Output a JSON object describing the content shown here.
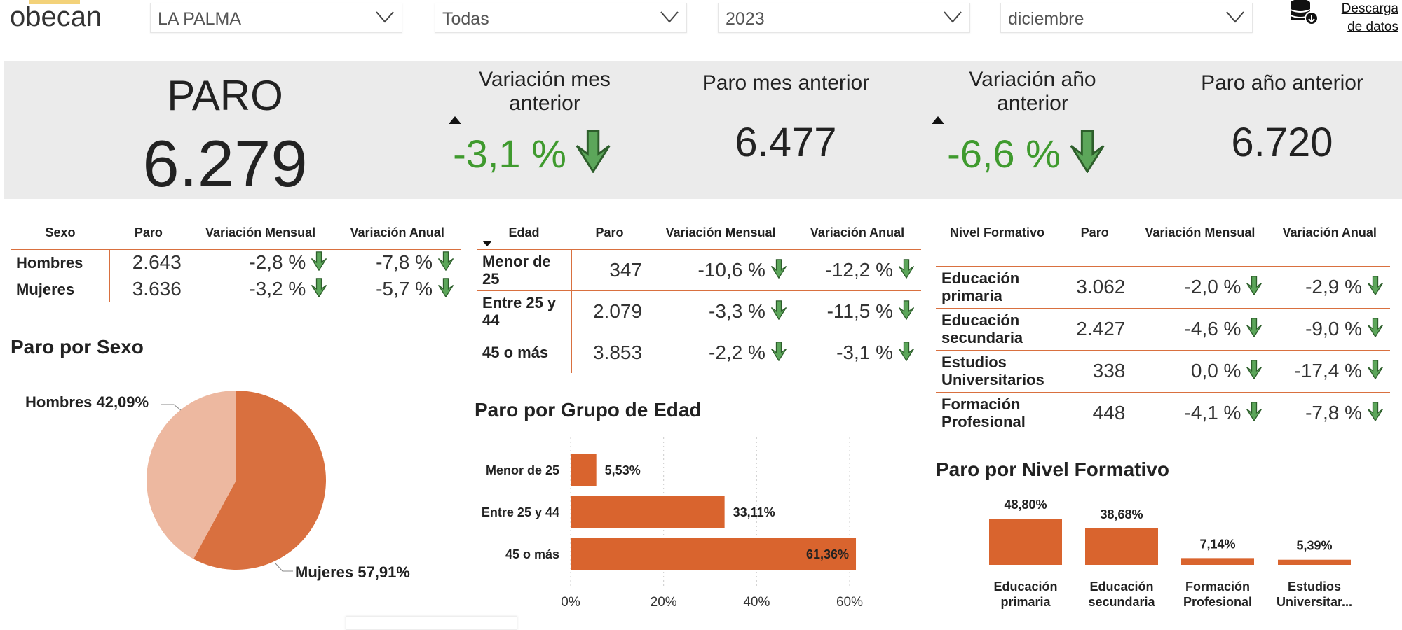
{
  "header": {
    "logo": "obecan",
    "filters": [
      {
        "value": "LA PALMA"
      },
      {
        "value": "Todas"
      },
      {
        "value": "2023"
      },
      {
        "value": "diciembre"
      }
    ],
    "download_label_1": "Descarga",
    "download_label_2": "de datos"
  },
  "kpis": {
    "paro_label": "PARO",
    "paro_value": "6.279",
    "var_mes_label_1": "Variación mes",
    "var_mes_label_2": "anterior",
    "var_mes_value": "-3,1 %",
    "paro_mes_label": "Paro mes anterior",
    "paro_mes_value": "6.477",
    "var_anio_label_1": "Variación año",
    "var_anio_label_2": "anterior",
    "var_anio_value": "-6,6 %",
    "paro_anio_label": "Paro año anterior",
    "paro_anio_value": "6.720"
  },
  "colors": {
    "accent": "#d9703f",
    "accent_light": "#edb8a0",
    "positive": "#3f9a2e",
    "kpi_bg": "#ebebeb"
  },
  "sexo_table": {
    "headers": [
      "Sexo",
      "Paro",
      "Variación Mensual",
      "Variación Anual"
    ],
    "rows": [
      [
        "Hombres",
        "2.643",
        "-2,8 %",
        "-7,8 %"
      ],
      [
        "Mujeres",
        "3.636",
        "-3,2 %",
        "-5,7 %"
      ]
    ]
  },
  "edad_table": {
    "headers": [
      "Edad",
      "Paro",
      "Variación Mensual",
      "Variación Anual"
    ],
    "rows": [
      [
        "Menor de 25",
        "347",
        "-10,6 %",
        "-12,2 %"
      ],
      [
        "Entre 25 y 44",
        "2.079",
        "-3,3 %",
        "-11,5 %"
      ],
      [
        "45 o más",
        "3.853",
        "-2,2 %",
        "-3,1 %"
      ]
    ]
  },
  "nivel_table": {
    "headers": [
      "Nivel Formativo",
      "Paro",
      "Variación Mensual",
      "Variación Anual"
    ],
    "rows": [
      [
        "Educación primaria",
        "3.062",
        "-2,0 %",
        "-2,9 %"
      ],
      [
        "Educación secundaria",
        "2.427",
        "-4,6 %",
        "-9,0 %"
      ],
      [
        "Estudios Universitarios",
        "338",
        "0,0 %",
        "-17,4 %"
      ],
      [
        "Formación Profesional",
        "448",
        "-4,1 %",
        "-7,8 %"
      ]
    ]
  },
  "chart_data": [
    {
      "type": "pie",
      "title": "Paro por Sexo",
      "categories": [
        "Hombres",
        "Mujeres"
      ],
      "values": [
        42.09,
        57.91
      ],
      "labels": [
        "Hombres 42,09%",
        "Mujeres 57,91%"
      ],
      "colors": [
        "#edb8a0",
        "#d9703f"
      ]
    },
    {
      "type": "bar",
      "orientation": "horizontal",
      "title": "Paro por Grupo de Edad",
      "categories": [
        "Menor de 25",
        "Entre 25 y 44",
        "45 o más"
      ],
      "values": [
        5.53,
        33.11,
        61.36
      ],
      "labels": [
        "5,53%",
        "33,11%",
        "61,36%"
      ],
      "xlim": [
        0,
        60
      ],
      "ticks": [
        "0%",
        "20%",
        "40%",
        "60%"
      ],
      "grid": true
    },
    {
      "type": "bar",
      "title": "Paro por Nivel Formativo",
      "categories": [
        "Educación primaria",
        "Educación secundaria",
        "Formación Profesional",
        "Estudios Universitar..."
      ],
      "values": [
        48.8,
        38.68,
        7.14,
        5.39
      ],
      "labels": [
        "48,80%",
        "38,68%",
        "7,14%",
        "5,39%"
      ]
    }
  ]
}
